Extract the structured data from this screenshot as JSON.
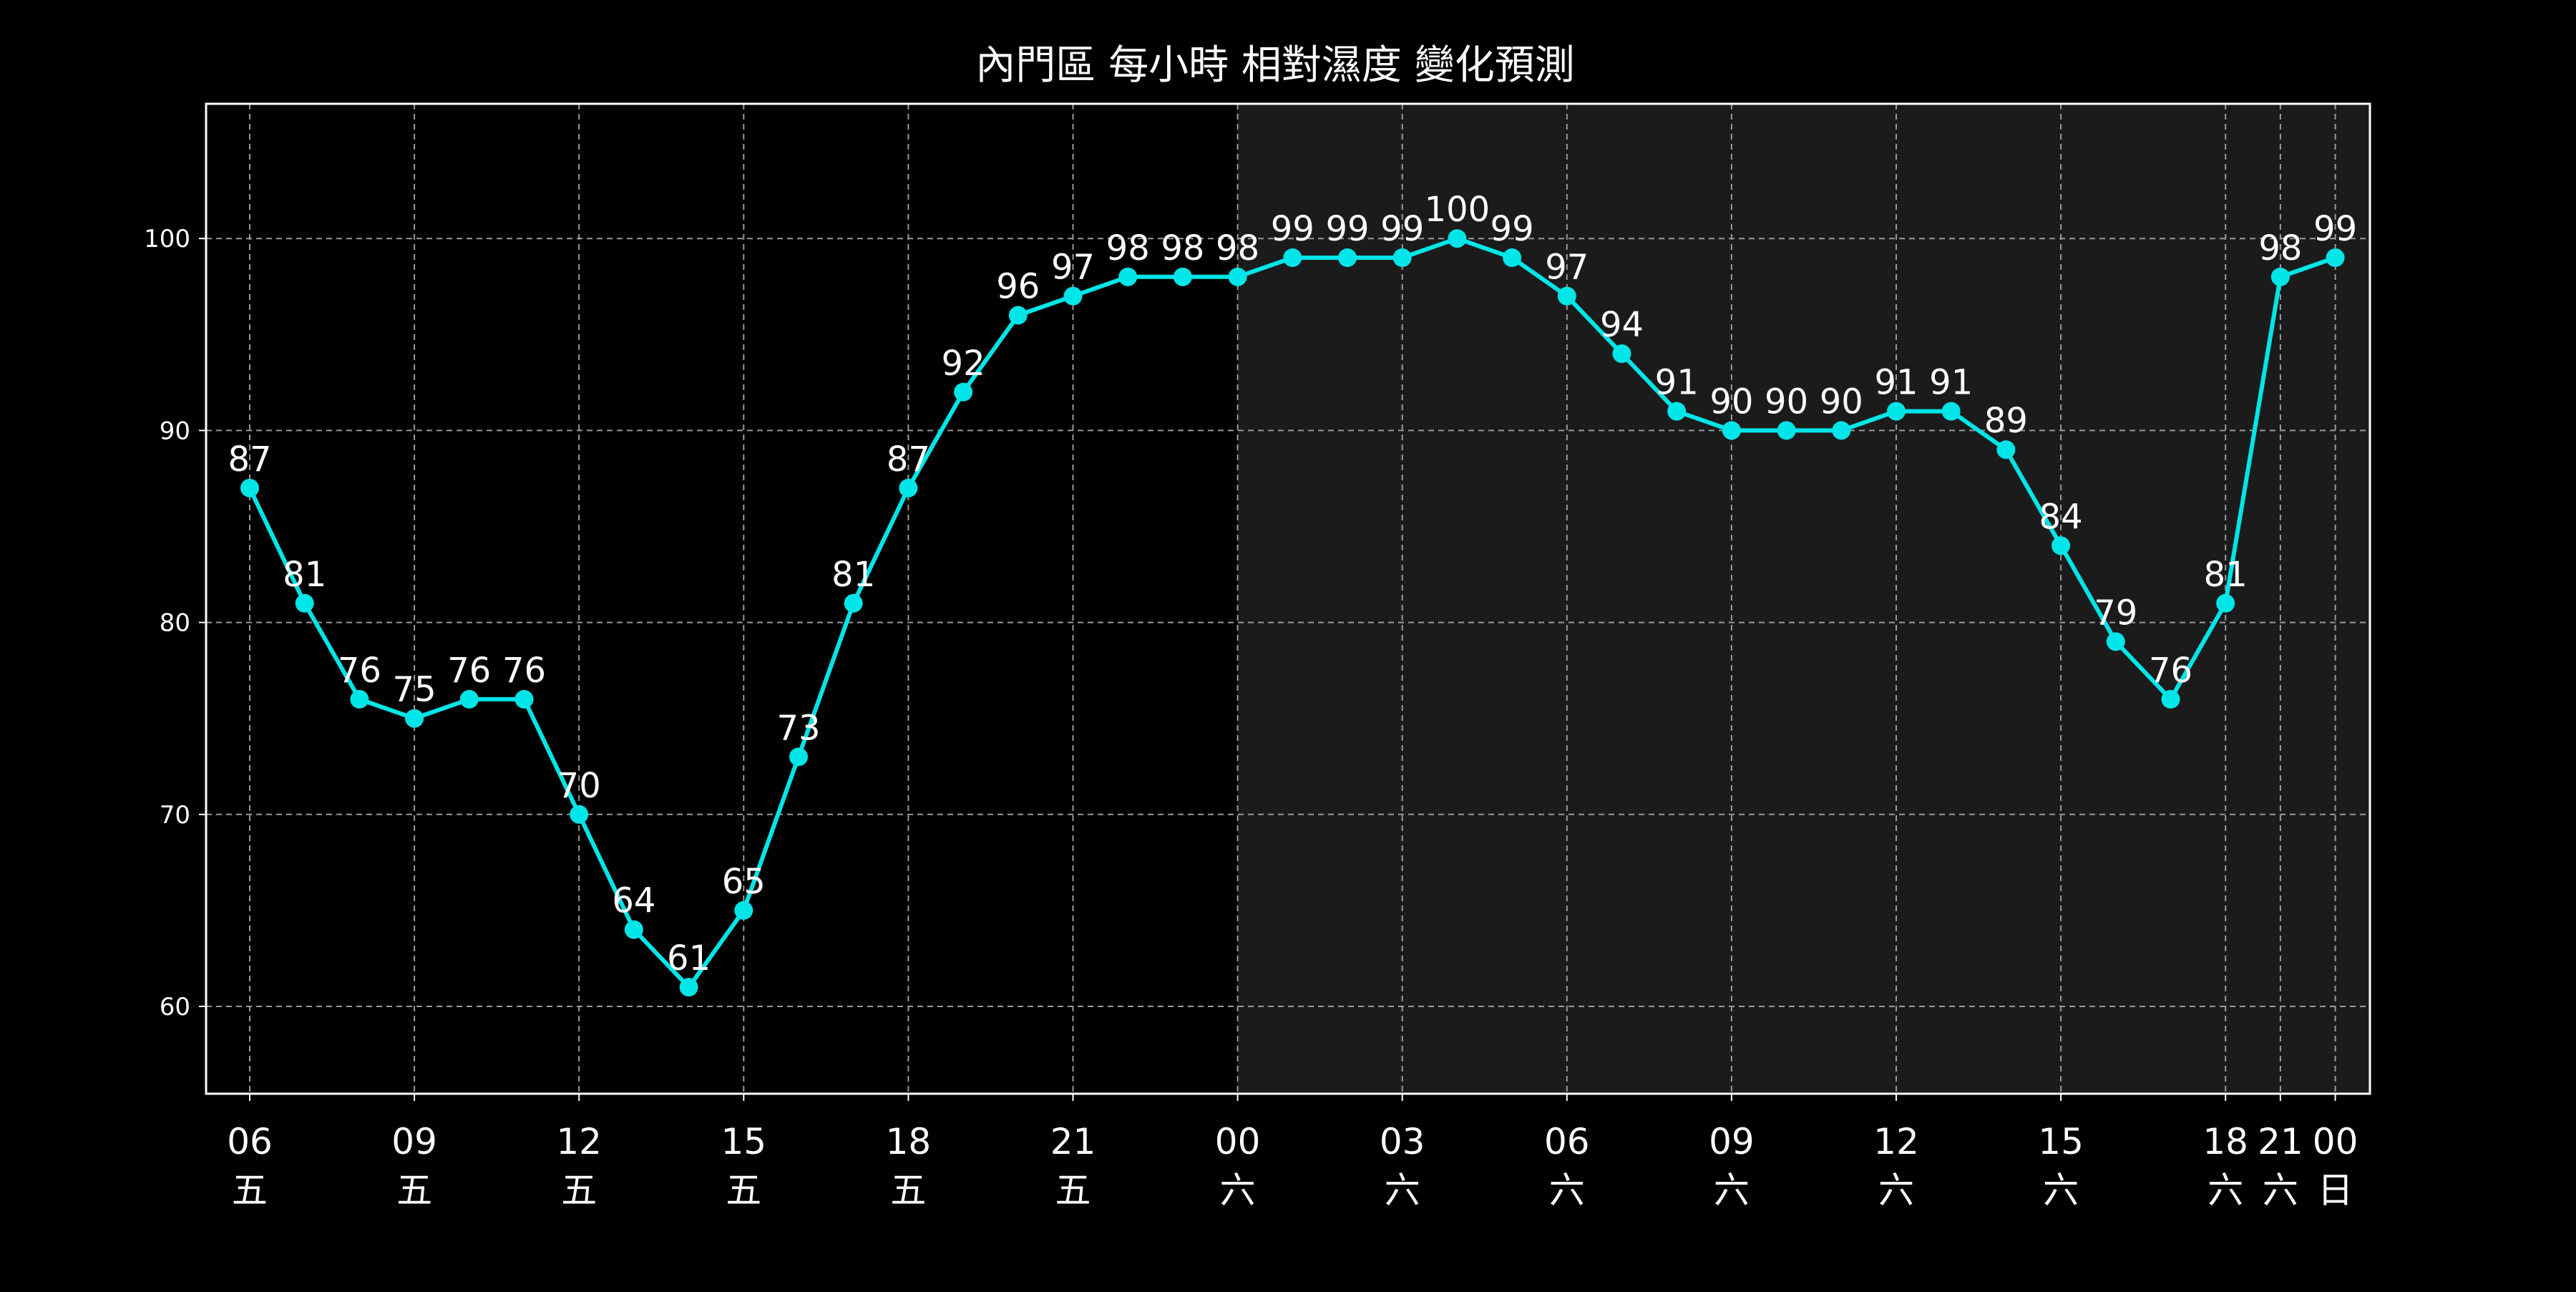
{
  "chart_data": {
    "type": "line",
    "title": "內門區 每小時 相對濕度 變化預測",
    "xlabel": "",
    "ylabel": "",
    "ylim": [
      55,
      107
    ],
    "yticks": [
      60,
      70,
      80,
      90,
      100
    ],
    "grid": true,
    "legend": "none",
    "hours": [
      "06",
      "07",
      "08",
      "09",
      "10",
      "11",
      "12",
      "13",
      "14",
      "15",
      "16",
      "17",
      "18",
      "19",
      "20",
      "21",
      "22",
      "23",
      "00",
      "01",
      "02",
      "03",
      "04",
      "05",
      "06",
      "07",
      "08",
      "09",
      "10",
      "11",
      "12",
      "13",
      "14",
      "15",
      "16",
      "17",
      "18",
      "21",
      "00"
    ],
    "days": [
      "五",
      "五",
      "五",
      "五",
      "五",
      "五",
      "五",
      "五",
      "五",
      "五",
      "五",
      "五",
      "五",
      "五",
      "五",
      "五",
      "五",
      "五",
      "六",
      "六",
      "六",
      "六",
      "六",
      "六",
      "六",
      "六",
      "六",
      "六",
      "六",
      "六",
      "六",
      "六",
      "六",
      "六",
      "六",
      "六",
      "六",
      "六",
      "日"
    ],
    "x_positions": [
      6,
      7,
      8,
      9,
      10,
      11,
      12,
      13,
      14,
      15,
      16,
      17,
      18,
      19,
      20,
      21,
      22,
      23,
      24,
      25,
      26,
      27,
      28,
      29,
      30,
      31,
      32,
      33,
      34,
      35,
      36,
      37,
      38,
      39,
      40,
      41,
      42,
      43,
      44
    ],
    "x_ticks": [
      {
        "x": 6,
        "hour": "06",
        "day": "五"
      },
      {
        "x": 9,
        "hour": "09",
        "day": "五"
      },
      {
        "x": 12,
        "hour": "12",
        "day": "五"
      },
      {
        "x": 15,
        "hour": "15",
        "day": "五"
      },
      {
        "x": 18,
        "hour": "18",
        "day": "五"
      },
      {
        "x": 21,
        "hour": "21",
        "day": "五"
      },
      {
        "x": 24,
        "hour": "00",
        "day": "六"
      },
      {
        "x": 27,
        "hour": "03",
        "day": "六"
      },
      {
        "x": 30,
        "hour": "06",
        "day": "六"
      },
      {
        "x": 33,
        "hour": "09",
        "day": "六"
      },
      {
        "x": 36,
        "hour": "12",
        "day": "六"
      },
      {
        "x": 39,
        "hour": "15",
        "day": "六"
      },
      {
        "x": 42,
        "hour": "18",
        "day": "六"
      },
      {
        "x": 43,
        "hour": "21",
        "day": "六"
      },
      {
        "x": 44,
        "hour": "00",
        "day": "日"
      }
    ],
    "series": [
      {
        "values": [
          87,
          81,
          76,
          75,
          76,
          76,
          70,
          64,
          61,
          65,
          73,
          81,
          87,
          92,
          96,
          97,
          98,
          98,
          98,
          99,
          99,
          99,
          100,
          99,
          97,
          94,
          91,
          90,
          90,
          90,
          91,
          91,
          89,
          84,
          79,
          76,
          81,
          98,
          99
        ]
      }
    ],
    "shaded_region": {
      "x_start": 24,
      "x_end": 44.8,
      "color": "#1b1b1b"
    },
    "colors": {
      "background": "#000000",
      "line": "#00e5e8",
      "text": "#ffffff",
      "grid": "#9a9a9a",
      "frame": "#ffffff"
    }
  }
}
